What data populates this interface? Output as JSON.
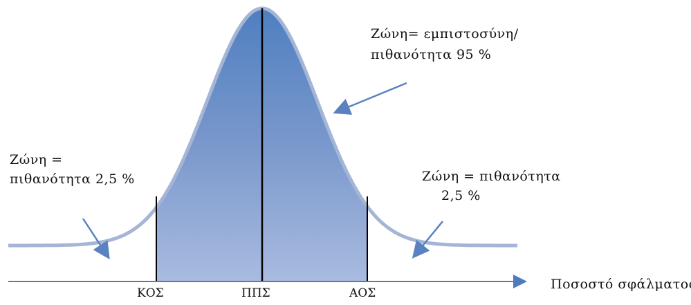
{
  "annotations": {
    "center_zone_line1": "Ζώνη= εμπιστοσύνη/",
    "center_zone_line2": "πιθανότητα 95 %",
    "left_tail_line1": "Ζώνη =",
    "left_tail_line2": "πιθανότητα 2,5 %",
    "right_tail_line1": "Ζώνη = πιθανότητα",
    "right_tail_line2": "2,5 %"
  },
  "axis": {
    "label": "Ποσοστό σφάλματος",
    "ticks": [
      "ΚΟΣ",
      "ΠΠΣ",
      "ΑΟΣ"
    ]
  },
  "colors": {
    "fill_top": "#5b84c0",
    "fill_bottom": "#a7b9de",
    "tail_curve": "#a4b5d6",
    "axis": "#4f7ac0",
    "arrow": "#5a82c0",
    "divider": "#000000"
  }
}
